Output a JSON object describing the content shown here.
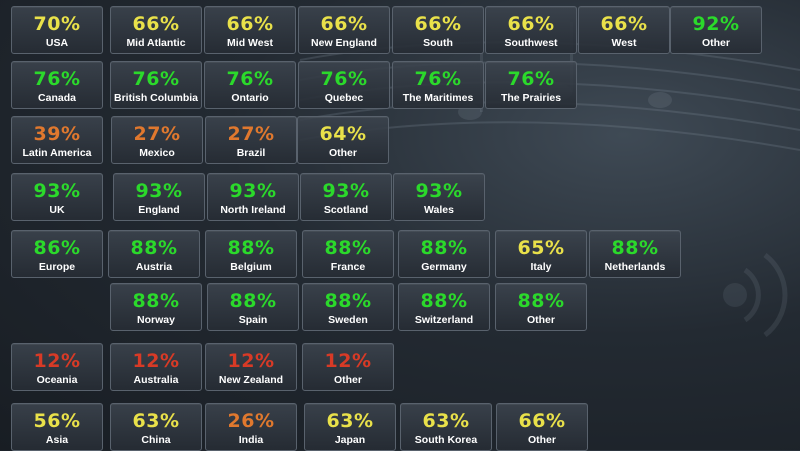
{
  "colors": {
    "high": "#2bd92b",
    "mid": "#e9e14a",
    "low": "#e0782e",
    "critical": "#d83a26"
  },
  "rows": [
    {
      "tiles": [
        {
          "pct": "70%",
          "label": "USA",
          "level": "mid"
        },
        {
          "pct": "66%",
          "label": "Mid Atlantic",
          "level": "mid"
        },
        {
          "pct": "66%",
          "label": "Mid West",
          "level": "mid"
        },
        {
          "pct": "66%",
          "label": "New England",
          "level": "mid"
        },
        {
          "pct": "66%",
          "label": "South",
          "level": "mid"
        },
        {
          "pct": "66%",
          "label": "Southwest",
          "level": "mid"
        },
        {
          "pct": "66%",
          "label": "West",
          "level": "mid"
        },
        {
          "pct": "92%",
          "label": "Other",
          "level": "high"
        }
      ]
    },
    {
      "tiles": [
        {
          "pct": "76%",
          "label": "Canada",
          "level": "high"
        },
        {
          "pct": "76%",
          "label": "British Columbia",
          "level": "high"
        },
        {
          "pct": "76%",
          "label": "Ontario",
          "level": "high"
        },
        {
          "pct": "76%",
          "label": "Quebec",
          "level": "high"
        },
        {
          "pct": "76%",
          "label": "The Maritimes",
          "level": "high"
        },
        {
          "pct": "76%",
          "label": "The Prairies",
          "level": "high"
        }
      ]
    },
    {
      "tiles": [
        {
          "pct": "39%",
          "label": "Latin America",
          "level": "low"
        },
        {
          "pct": "27%",
          "label": "Mexico",
          "level": "low"
        },
        {
          "pct": "27%",
          "label": "Brazil",
          "level": "low"
        },
        {
          "pct": "64%",
          "label": "Other",
          "level": "mid"
        }
      ]
    },
    {
      "tiles": [
        {
          "pct": "93%",
          "label": "UK",
          "level": "high"
        },
        {
          "pct": "93%",
          "label": "England",
          "level": "high"
        },
        {
          "pct": "93%",
          "label": "North Ireland",
          "level": "high"
        },
        {
          "pct": "93%",
          "label": "Scotland",
          "level": "high"
        },
        {
          "pct": "93%",
          "label": "Wales",
          "level": "high"
        }
      ]
    },
    {
      "tiles": [
        {
          "pct": "86%",
          "label": "Europe",
          "level": "high"
        },
        {
          "pct": "88%",
          "label": "Austria",
          "level": "high"
        },
        {
          "pct": "88%",
          "label": "Belgium",
          "level": "high"
        },
        {
          "pct": "88%",
          "label": "France",
          "level": "high"
        },
        {
          "pct": "88%",
          "label": "Germany",
          "level": "high"
        },
        {
          "pct": "65%",
          "label": "Italy",
          "level": "mid"
        },
        {
          "pct": "88%",
          "label": "Netherlands",
          "level": "high"
        }
      ]
    },
    {
      "tiles": [
        {
          "pct": "88%",
          "label": "Norway",
          "level": "high"
        },
        {
          "pct": "88%",
          "label": "Spain",
          "level": "high"
        },
        {
          "pct": "88%",
          "label": "Sweden",
          "level": "high"
        },
        {
          "pct": "88%",
          "label": "Switzerland",
          "level": "high"
        },
        {
          "pct": "88%",
          "label": "Other",
          "level": "high"
        }
      ]
    },
    {
      "tiles": [
        {
          "pct": "12%",
          "label": "Oceania",
          "level": "critical"
        },
        {
          "pct": "12%",
          "label": "Australia",
          "level": "critical"
        },
        {
          "pct": "12%",
          "label": "New Zealand",
          "level": "critical"
        },
        {
          "pct": "12%",
          "label": "Other",
          "level": "critical"
        }
      ]
    },
    {
      "tiles": [
        {
          "pct": "56%",
          "label": "Asia",
          "level": "mid"
        },
        {
          "pct": "63%",
          "label": "China",
          "level": "mid"
        },
        {
          "pct": "26%",
          "label": "India",
          "level": "low"
        },
        {
          "pct": "63%",
          "label": "Japan",
          "level": "mid"
        },
        {
          "pct": "63%",
          "label": "South Korea",
          "level": "mid"
        },
        {
          "pct": "66%",
          "label": "Other",
          "level": "mid"
        }
      ]
    }
  ]
}
